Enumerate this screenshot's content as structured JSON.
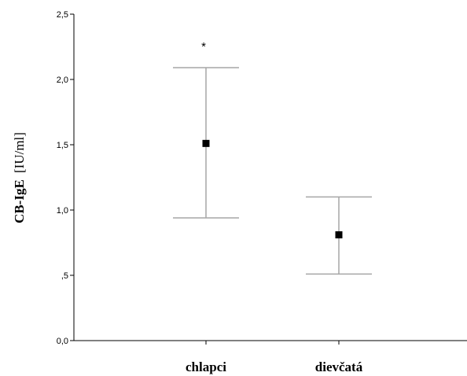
{
  "chart_data": {
    "type": "scatter",
    "categories": [
      "chlapci",
      "dievčatá"
    ],
    "ylabel_bold": "CB-IgE",
    "ylabel_unit": "[IU/ml]",
    "ylim": [
      0,
      2.5
    ],
    "yticks": [
      {
        "value": 0,
        "label": "0,0"
      },
      {
        "value": 0.5,
        "label": ",5"
      },
      {
        "value": 1.0,
        "label": "1,0"
      },
      {
        "value": 1.5,
        "label": "1,5"
      },
      {
        "value": 2.0,
        "label": "2,0"
      },
      {
        "value": 2.5,
        "label": "2,5"
      }
    ],
    "points": [
      {
        "category": "chlapci",
        "mean": 1.51,
        "lower": 0.94,
        "upper": 2.09,
        "annotation": "*"
      },
      {
        "category": "dievčatá",
        "mean": 0.81,
        "lower": 0.51,
        "upper": 1.1,
        "annotation": ""
      }
    ],
    "grid": false,
    "colors": {
      "marker": "#000000",
      "errorbar": "#a6a6a6",
      "axis": "#000000"
    }
  }
}
